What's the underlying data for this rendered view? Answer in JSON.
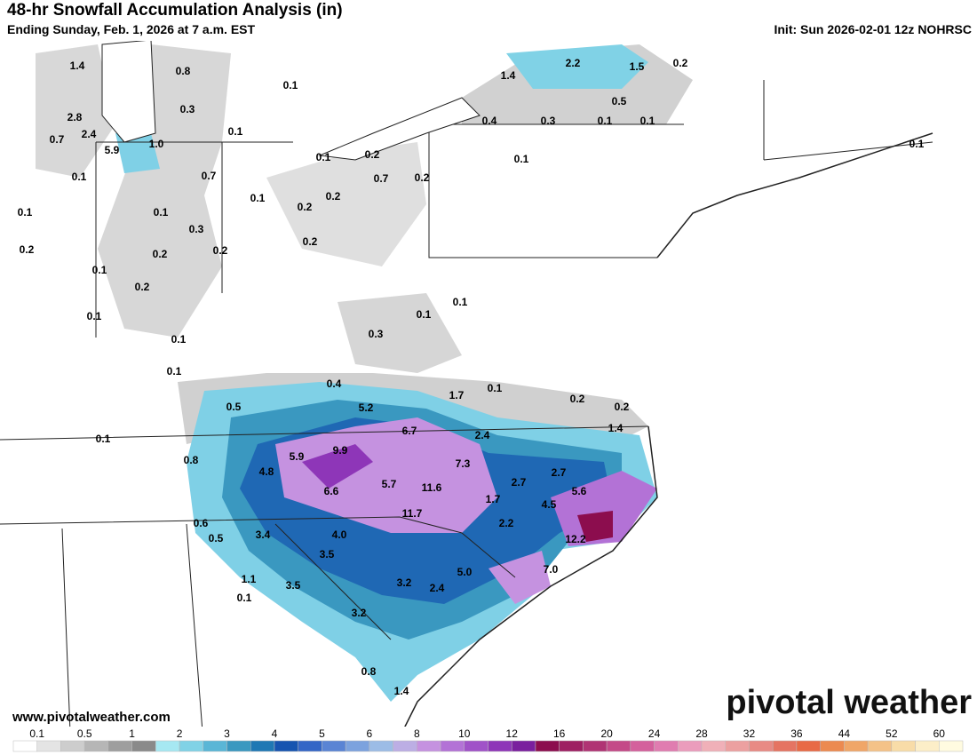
{
  "header": {
    "title": "48-hr Snowfall Accumulation Analysis (in)",
    "subtitle": "Ending Sunday, Feb. 1, 2026 at 7 a.m. EST",
    "init": "Init: Sun 2026-02-01 12z NOHRSC"
  },
  "footer": {
    "url": "www.pivotalweather.com",
    "logo": "pivotal weather"
  },
  "map_labels": [
    "1.4",
    "0.8",
    "0.1",
    "0.3",
    "2.8",
    "0.7",
    "2.4",
    "5.9",
    "1.0",
    "0.1",
    "0.7",
    "0.1",
    "0.1",
    "0.2",
    "0.2",
    "0.1",
    "0.3",
    "0.2",
    "0.2",
    "0.1",
    "0.2",
    "0.1",
    "0.2",
    "0.1",
    "0.2",
    "0.1",
    "0.1",
    "0.2",
    "0.7",
    "0.2",
    "0.1",
    "1.4",
    "2.2",
    "1.5",
    "0.2",
    "0.5",
    "0.4",
    "0.3",
    "0.1",
    "0.1",
    "0.1",
    "0.1",
    "0.1",
    "0.3",
    "0.4",
    "0.5",
    "5.2",
    "1.7",
    "0.1",
    "0.2",
    "0.2",
    "6.7",
    "2.4",
    "1.4",
    "0.1",
    "0.8",
    "5.9",
    "9.9",
    "4.8",
    "6.6",
    "5.7",
    "11.6",
    "7.3",
    "2.7",
    "2.7",
    "5.6",
    "1.7",
    "4.5",
    "11.7",
    "2.2",
    "12.2",
    "0.6",
    "0.5",
    "3.4",
    "4.0",
    "3.5",
    "1.1",
    "0.1",
    "3.5",
    "3.2",
    "2.4",
    "5.0",
    "7.0",
    "3.2",
    "0.8",
    "1.4",
    "0.1"
  ],
  "colorbar": {
    "labels": [
      "0.1",
      "0.5",
      "1",
      "2",
      "3",
      "4",
      "5",
      "6",
      "8",
      "10",
      "12",
      "16",
      "20",
      "24",
      "28",
      "32",
      "36",
      "44",
      "52",
      "60"
    ],
    "colors": [
      "#ffffff",
      "#e4e4e4",
      "#cdcdcd",
      "#b6b6b6",
      "#9e9e9e",
      "#8a8a8a",
      "#a6e8f2",
      "#80d2e6",
      "#5ab6d6",
      "#3a98c0",
      "#1f78b4",
      "#1654b0",
      "#3466c6",
      "#5a84d4",
      "#7ca2de",
      "#9cbce6",
      "#bcaee4",
      "#c592e0",
      "#b372d6",
      "#a052c8",
      "#8e36b8",
      "#7a1f9e",
      "#8c0d4e",
      "#9e1f62",
      "#b03474",
      "#c44a88",
      "#d4609c",
      "#e07cb0",
      "#eb9cbc",
      "#f0b0b8",
      "#eca0a0",
      "#e88a84",
      "#e57462",
      "#e86a46",
      "#ec8a50",
      "#f0a668",
      "#f4c288",
      "#f8dca8",
      "#fceec8",
      "#fffbe0"
    ]
  }
}
